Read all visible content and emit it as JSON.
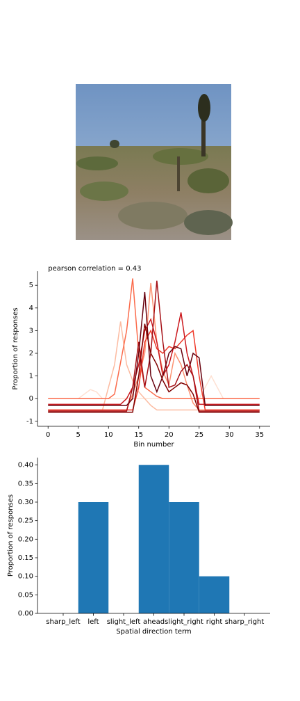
{
  "chart_data": [
    {
      "type": "line",
      "title": "pearson correlation = 0.43",
      "xlabel": "Bin number",
      "ylabel": "Proportion of responses",
      "x": [
        0,
        1,
        2,
        3,
        4,
        5,
        6,
        7,
        8,
        9,
        10,
        11,
        12,
        13,
        14,
        15,
        16,
        17,
        18,
        19,
        20,
        21,
        22,
        23,
        24,
        25,
        26,
        27,
        28,
        29,
        30,
        31,
        32,
        33,
        34,
        35
      ],
      "xlim": [
        -1.75,
        36.75
      ],
      "xticks": [
        0,
        5,
        10,
        15,
        20,
        25,
        30,
        35
      ],
      "ylim": [
        -1.22,
        5.62
      ],
      "yticks": [
        -1,
        0,
        1,
        2,
        3,
        4,
        5
      ],
      "series": [
        {
          "color": "#fee0d2",
          "values": [
            0,
            0,
            0,
            0,
            0,
            0,
            0.2,
            0.4,
            0.3,
            0,
            0,
            0,
            0,
            0,
            0,
            0,
            0,
            0,
            0,
            0,
            0,
            0,
            0,
            0,
            0,
            0,
            0.5,
            1.0,
            0.5,
            0,
            0,
            0,
            0,
            0,
            0,
            0
          ]
        },
        {
          "color": "#fcbba1",
          "values": [
            -0.5,
            -0.5,
            -0.5,
            -0.5,
            -0.5,
            -0.5,
            -0.5,
            -0.5,
            -0.5,
            -0.5,
            0.5,
            1.5,
            3.4,
            1.5,
            0.8,
            0.3,
            0,
            -0.3,
            -0.5,
            -0.5,
            -0.5,
            -0.5,
            -0.5,
            -0.5,
            -0.5,
            -0.5,
            -0.5,
            -0.5,
            -0.5,
            -0.5,
            -0.5,
            -0.5,
            -0.5,
            -0.5,
            -0.5,
            -0.5
          ]
        },
        {
          "color": "#fc9272",
          "values": [
            -0.5,
            -0.5,
            -0.5,
            -0.5,
            -0.5,
            -0.5,
            -0.5,
            -0.5,
            -0.5,
            -0.5,
            -0.5,
            -0.5,
            -0.5,
            -0.5,
            0.2,
            1.0,
            2.0,
            5.1,
            2.5,
            1.2,
            0.6,
            2.0,
            1.5,
            0.6,
            -0.2,
            -0.5,
            -0.5,
            -0.5,
            -0.5,
            -0.5,
            -0.5,
            -0.5,
            -0.5,
            -0.5,
            -0.5,
            -0.5
          ]
        },
        {
          "color": "#fb6a4a",
          "values": [
            0,
            0,
            0,
            0,
            0,
            0,
            0,
            0,
            0,
            0,
            0,
            0.2,
            1.6,
            3.0,
            5.3,
            2.0,
            0.5,
            0.3,
            0.1,
            0,
            0,
            0,
            0,
            0,
            0,
            0,
            0,
            0,
            0,
            0,
            0,
            0,
            0,
            0,
            0,
            0
          ]
        },
        {
          "color": "#ef3b2c",
          "values": [
            -0.5,
            -0.5,
            -0.5,
            -0.5,
            -0.5,
            -0.5,
            -0.5,
            -0.5,
            -0.5,
            -0.5,
            -0.5,
            -0.5,
            -0.5,
            -0.5,
            -0.5,
            0.5,
            2.5,
            3.0,
            2.2,
            2.0,
            2.3,
            2.2,
            2.5,
            2.8,
            3.0,
            1.0,
            -0.5,
            -0.5,
            -0.5,
            -0.5,
            -0.5,
            -0.5,
            -0.5,
            -0.5,
            -0.5,
            -0.5
          ]
        },
        {
          "color": "#cb181d",
          "values": [
            -0.25,
            -0.25,
            -0.25,
            -0.25,
            -0.25,
            -0.25,
            -0.25,
            -0.25,
            -0.25,
            -0.25,
            -0.25,
            -0.25,
            -0.25,
            0,
            0.5,
            1.5,
            3.0,
            3.5,
            2.5,
            1.0,
            1.5,
            2.5,
            3.8,
            2.0,
            1.0,
            -0.25,
            -0.25,
            -0.25,
            -0.25,
            -0.25,
            -0.25,
            -0.25,
            -0.25,
            -0.25,
            -0.25,
            -0.25
          ]
        },
        {
          "color": "#a50f15",
          "values": [
            -0.55,
            -0.55,
            -0.55,
            -0.55,
            -0.55,
            -0.55,
            -0.55,
            -0.55,
            -0.55,
            -0.55,
            -0.55,
            -0.55,
            -0.55,
            -0.55,
            0.5,
            2.5,
            0.5,
            2.0,
            5.2,
            2.5,
            0.5,
            0.6,
            1.2,
            1.5,
            1.0,
            -0.55,
            -0.55,
            -0.55,
            -0.55,
            -0.55,
            -0.55,
            -0.55,
            -0.55,
            -0.55,
            -0.55,
            -0.55
          ]
        },
        {
          "color": "#67000d",
          "values": [
            -0.3,
            -0.3,
            -0.3,
            -0.3,
            -0.3,
            -0.3,
            -0.3,
            -0.3,
            -0.3,
            -0.3,
            -0.3,
            -0.3,
            -0.3,
            -0.3,
            0,
            2.0,
            4.7,
            1.0,
            0.3,
            1.0,
            2.0,
            2.3,
            2.2,
            1.0,
            2.0,
            1.8,
            -0.3,
            -0.3,
            -0.3,
            -0.3,
            -0.3,
            -0.3,
            -0.3,
            -0.3,
            -0.3,
            -0.3
          ]
        },
        {
          "color": "#7f0000",
          "values": [
            -0.6,
            -0.6,
            -0.6,
            -0.6,
            -0.6,
            -0.6,
            -0.6,
            -0.6,
            -0.6,
            -0.6,
            -0.6,
            -0.6,
            -0.6,
            -0.6,
            -0.6,
            1.0,
            3.3,
            2.0,
            1.5,
            0.8,
            0.3,
            0.5,
            0.7,
            0.6,
            0.2,
            -0.6,
            -0.6,
            -0.6,
            -0.6,
            -0.6,
            -0.6,
            -0.6,
            -0.6,
            -0.6,
            -0.6,
            -0.6
          ]
        }
      ]
    },
    {
      "type": "bar",
      "xlabel": "Spatial direction term",
      "ylabel": "Proportion of responses",
      "categories": [
        "sharp_left",
        "left",
        "slight_left",
        "ahead",
        "slight_right",
        "right",
        "sharp_right"
      ],
      "values": [
        0,
        0.3,
        0,
        0.4,
        0.3,
        0.1,
        0
      ],
      "color": "#1f77b4",
      "xlim": [
        -0.85,
        6.85
      ],
      "ylim": [
        0,
        0.42
      ],
      "yticks": [
        {
          "value": 0,
          "label": "0.00"
        },
        {
          "value": 0.05,
          "label": "0.05"
        },
        {
          "value": 0.1,
          "label": "0.10"
        },
        {
          "value": 0.15,
          "label": "0.15"
        },
        {
          "value": 0.2,
          "label": "0.20"
        },
        {
          "value": 0.25,
          "label": "0.25"
        },
        {
          "value": 0.3,
          "label": "0.30"
        },
        {
          "value": 0.35,
          "label": "0.35"
        },
        {
          "value": 0.4,
          "label": "0.40"
        }
      ]
    }
  ]
}
